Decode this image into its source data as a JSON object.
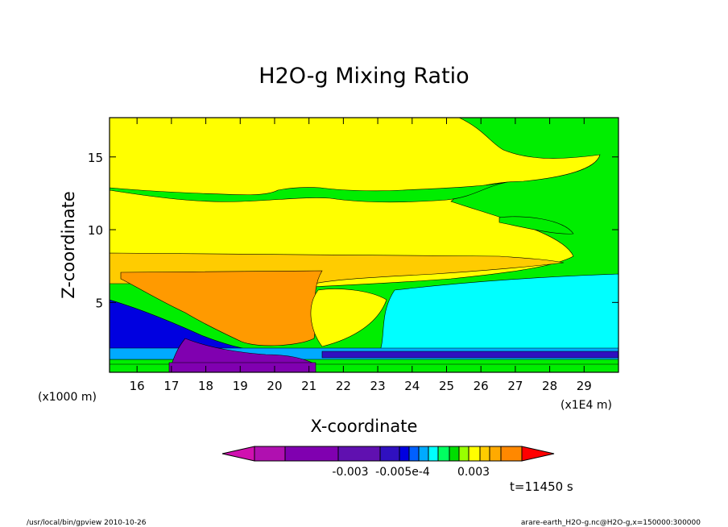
{
  "chart_data": {
    "type": "heatmap",
    "title": "H2O-g Mixing Ratio",
    "xlabel": "X-coordinate",
    "ylabel": "Z-coordinate",
    "x_unit_left": "(x1000 m)",
    "x_unit_right": "(x1E4 m)",
    "xlim": [
      15.2,
      30.0
    ],
    "ylim": [
      0.2,
      17.7
    ],
    "x_ticks": [
      16,
      17,
      18,
      19,
      20,
      21,
      22,
      23,
      24,
      25,
      26,
      27,
      28,
      29
    ],
    "x_tick_labels": [
      "16",
      "17",
      "18",
      "19",
      "20",
      "21",
      "22",
      "23",
      "24",
      "25",
      "26",
      "27",
      "28",
      "29"
    ],
    "y_ticks": [
      5,
      10,
      15
    ],
    "y_tick_labels": [
      "5",
      "10",
      "15"
    ],
    "grid": false,
    "colorbar": {
      "colors": [
        "#d010b0",
        "#b010b0",
        "#8000b0",
        "#6010b0",
        "#3010c0",
        "#0000e0",
        "#0060ff",
        "#00aaff",
        "#00ffff",
        "#00ff60",
        "#00dd00",
        "#99ff00",
        "#ffff00",
        "#ffcc00",
        "#ffaa00",
        "#ff8800",
        "#ff0000"
      ],
      "labels": [
        "-0.003",
        "-0.005e-4",
        "0.003"
      ]
    },
    "time_label": "t=11450 s"
  },
  "footer": {
    "left": "/usr/local/bin/gpview  2010-10-26",
    "right": "arare-earth_H2O-g.nc@H2O-g,x=150000:300000"
  }
}
